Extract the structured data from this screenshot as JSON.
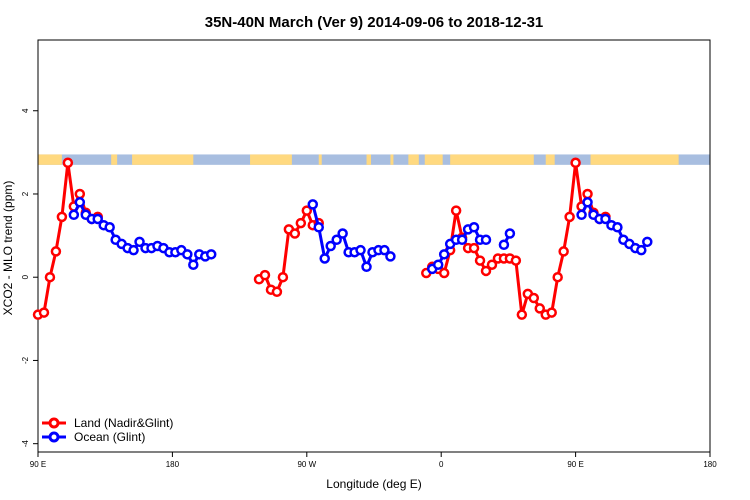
{
  "chart_data": {
    "type": "line",
    "title": "35N-40N March (Ver 9)   2014-09-06 to 2018-12-31",
    "xlabel": "Longitude (deg E)",
    "ylabel": "XCO2 - MLO trend (ppm)",
    "xlim": [
      90,
      540
    ],
    "ylim": [
      -4.2,
      5.7
    ],
    "x_ticks": [
      {
        "value": 90,
        "label": "90 E"
      },
      {
        "value": 180,
        "label": "180"
      },
      {
        "value": 270,
        "label": "90 W"
      },
      {
        "value": 360,
        "label": "0"
      },
      {
        "value": 450,
        "label": "90 E"
      },
      {
        "value": 540,
        "label": "180"
      }
    ],
    "y_ticks": [
      {
        "value": -4,
        "label": "-4"
      },
      {
        "value": -2,
        "label": "-2"
      },
      {
        "value": 0,
        "label": "0"
      },
      {
        "value": 2,
        "label": "2"
      },
      {
        "value": 4,
        "label": "4"
      }
    ],
    "grid": false,
    "legend_position": "bottom-left",
    "colors": {
      "land": "#ff0000",
      "ocean": "#0000ff",
      "band_land": "#ffd980",
      "band_ocean": "#a8bee0"
    },
    "surface_band": {
      "y_range": [
        2.7,
        2.95
      ],
      "land_x_ranges": [
        [
          90,
          106
        ],
        [
          139,
          143
        ],
        [
          153,
          194
        ],
        [
          232,
          260
        ],
        [
          278,
          280
        ],
        [
          310,
          313
        ],
        [
          326,
          328
        ],
        [
          338,
          345
        ],
        [
          349,
          361
        ],
        [
          366,
          422
        ],
        [
          430,
          436
        ],
        [
          460,
          519
        ]
      ]
    },
    "series": [
      {
        "name": "Land (Nadir&Glint)",
        "color": "#ff0000",
        "points": [
          [
            90,
            -0.9
          ],
          [
            94,
            -0.85
          ],
          [
            98,
            0
          ],
          [
            102,
            0.62
          ],
          [
            106,
            1.45
          ],
          [
            110,
            2.75
          ],
          [
            114,
            1.7
          ],
          [
            118,
            2.0
          ],
          [
            122,
            1.55
          ],
          [
            126,
            1.4
          ],
          [
            130,
            1.45
          ],
          [
            238,
            -0.05
          ],
          [
            242,
            0.05
          ],
          [
            246,
            -0.3
          ],
          [
            250,
            -0.35
          ],
          [
            254,
            0
          ],
          [
            258,
            1.15
          ],
          [
            262,
            1.05
          ],
          [
            266,
            1.3
          ],
          [
            270,
            1.6
          ],
          [
            274,
            1.25
          ],
          [
            278,
            1.3
          ],
          [
            350,
            0.1
          ],
          [
            354,
            0.25
          ],
          [
            358,
            0.2
          ],
          [
            362,
            0.1
          ],
          [
            366,
            0.65
          ],
          [
            370,
            1.6
          ],
          [
            374,
            0.95
          ],
          [
            378,
            0.7
          ],
          [
            382,
            0.7
          ],
          [
            386,
            0.4
          ],
          [
            390,
            0.15
          ],
          [
            394,
            0.3
          ],
          [
            398,
            0.45
          ],
          [
            402,
            0.45
          ],
          [
            406,
            0.45
          ],
          [
            410,
            0.4
          ],
          [
            414,
            -0.9
          ],
          [
            418,
            -0.4
          ],
          [
            422,
            -0.5
          ],
          [
            426,
            -0.75
          ],
          [
            430,
            -0.9
          ],
          [
            434,
            -0.85
          ],
          [
            438,
            0
          ],
          [
            442,
            0.62
          ],
          [
            446,
            1.45
          ],
          [
            450,
            2.75
          ],
          [
            454,
            1.7
          ],
          [
            458,
            2.0
          ],
          [
            462,
            1.55
          ],
          [
            466,
            1.4
          ],
          [
            470,
            1.45
          ]
        ]
      },
      {
        "name": "Ocean (Glint)",
        "color": "#0000ff",
        "points": [
          [
            114,
            1.5
          ],
          [
            118,
            1.8
          ],
          [
            122,
            1.5
          ],
          [
            126,
            1.4
          ],
          [
            130,
            1.4
          ],
          [
            134,
            1.25
          ],
          [
            138,
            1.2
          ],
          [
            142,
            0.9
          ],
          [
            146,
            0.8
          ],
          [
            150,
            0.7
          ],
          [
            154,
            0.65
          ],
          [
            158,
            0.85
          ],
          [
            162,
            0.7
          ],
          [
            166,
            0.7
          ],
          [
            170,
            0.75
          ],
          [
            174,
            0.7
          ],
          [
            178,
            0.6
          ],
          [
            182,
            0.6
          ],
          [
            186,
            0.65
          ],
          [
            190,
            0.55
          ],
          [
            194,
            0.3
          ],
          [
            198,
            0.55
          ],
          [
            202,
            0.5
          ],
          [
            206,
            0.55
          ],
          [
            274,
            1.75
          ],
          [
            278,
            1.2
          ],
          [
            282,
            0.45
          ],
          [
            286,
            0.75
          ],
          [
            290,
            0.9
          ],
          [
            294,
            1.05
          ],
          [
            298,
            0.6
          ],
          [
            302,
            0.6
          ],
          [
            306,
            0.65
          ],
          [
            310,
            0.25
          ],
          [
            314,
            0.6
          ],
          [
            318,
            0.65
          ],
          [
            322,
            0.65
          ],
          [
            326,
            0.5
          ],
          [
            354,
            0.2
          ],
          [
            358,
            0.3
          ],
          [
            362,
            0.55
          ],
          [
            366,
            0.8
          ],
          [
            370,
            0.9
          ],
          [
            374,
            0.9
          ],
          [
            378,
            1.15
          ],
          [
            382,
            1.2
          ],
          [
            386,
            0.9
          ],
          [
            390,
            0.9
          ],
          [
            402,
            0.78
          ],
          [
            406,
            1.05
          ],
          [
            454,
            1.5
          ],
          [
            458,
            1.8
          ],
          [
            462,
            1.5
          ],
          [
            466,
            1.4
          ],
          [
            470,
            1.4
          ],
          [
            474,
            1.25
          ],
          [
            478,
            1.2
          ],
          [
            482,
            0.9
          ],
          [
            486,
            0.8
          ],
          [
            490,
            0.7
          ],
          [
            494,
            0.65
          ],
          [
            498,
            0.85
          ]
        ]
      }
    ]
  }
}
